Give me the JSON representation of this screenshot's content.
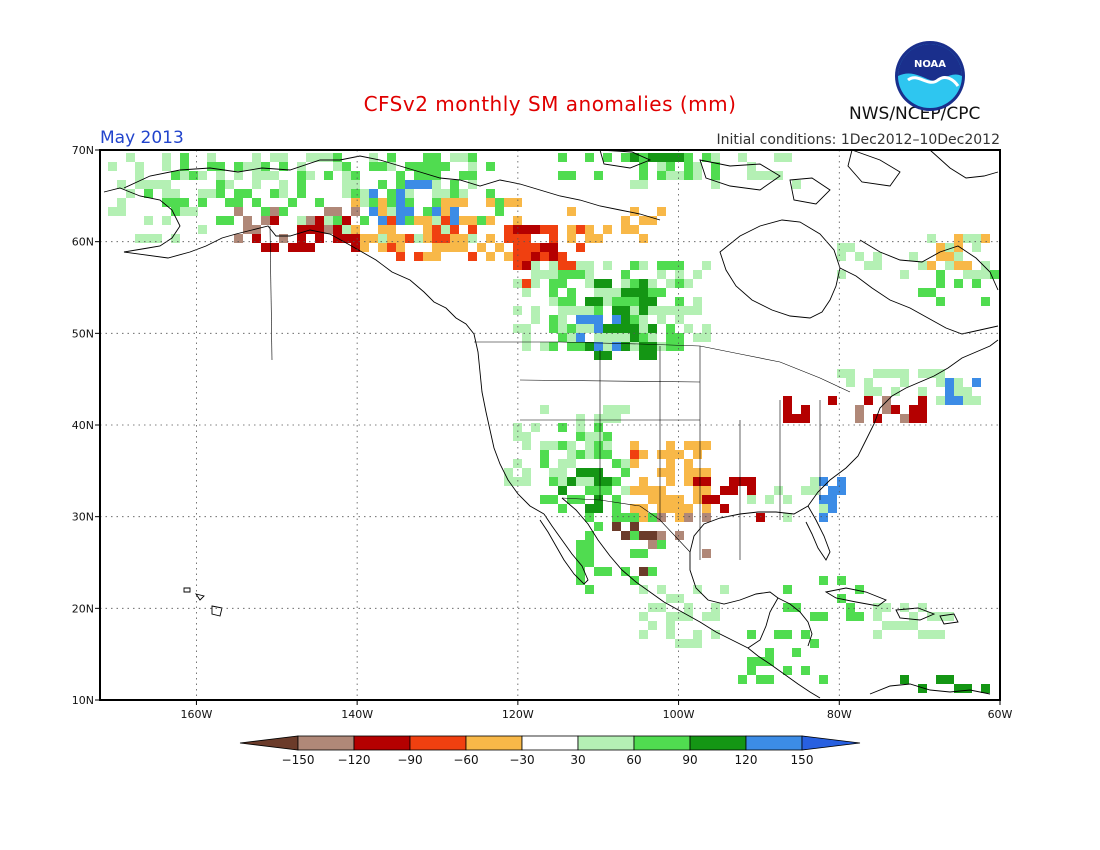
{
  "title": "CFSv2 monthly SM anomalies (mm)",
  "valid_month": "May 2013",
  "initial_conditions": "Initial conditions: 1Dec2012–10Dec2012",
  "agency": "NWS/NCEP/CPC",
  "logo": {
    "text": "NOAA",
    "icon": "noaa-logo-icon"
  },
  "map": {
    "lon_range": [
      -172,
      -60
    ],
    "lat_range": [
      10,
      70
    ],
    "lon_ticks": [
      -160,
      -140,
      -120,
      -100,
      -80,
      -60
    ],
    "lat_ticks": [
      10,
      20,
      30,
      40,
      50,
      60,
      70
    ],
    "lon_labels": [
      "160W",
      "140W",
      "120W",
      "100W",
      "80W",
      "60W"
    ],
    "lat_labels": [
      "10N",
      "20N",
      "30N",
      "40N",
      "50N",
      "60N",
      "70N"
    ],
    "grid": "dotted"
  },
  "colorbar": {
    "labels": [
      "−150",
      "−120",
      "−90",
      "−60",
      "−30",
      "30",
      "60",
      "90",
      "120",
      "150"
    ],
    "colors": [
      "#6b3b2a",
      "#b08878",
      "#b40000",
      "#f04010",
      "#f8b848",
      "#ffffff",
      "#b4f0b4",
      "#50dc50",
      "#149614",
      "#3c8ce6",
      "#2860e0"
    ]
  },
  "anomaly_colors": {
    "m150": "#6b3b2a",
    "m120": "#b08878",
    "m90": "#b40000",
    "m60": "#f04010",
    "m30": "#f8b848",
    "p30": "#b4f0b4",
    "p60": "#50dc50",
    "p90": "#149614",
    "p120": "#3c8ce6"
  },
  "anomaly_regions": [
    {
      "cls": "p30",
      "lon": [
        -170,
        -125
      ],
      "lat": [
        60,
        70
      ],
      "density": 0.32
    },
    {
      "cls": "p60",
      "lon": [
        -166,
        -128
      ],
      "lat": [
        62,
        70
      ],
      "density": 0.22
    },
    {
      "cls": "m120",
      "lon": [
        -155,
        -140
      ],
      "lat": [
        60,
        63
      ],
      "density": 0.25
    },
    {
      "cls": "m90",
      "lon": [
        -152,
        -140
      ],
      "lat": [
        59,
        62
      ],
      "density": 0.3
    },
    {
      "cls": "m30",
      "lon": [
        -140,
        -120
      ],
      "lat": [
        58,
        64
      ],
      "density": 0.4
    },
    {
      "cls": "m60",
      "lon": [
        -136,
        -126
      ],
      "lat": [
        58,
        63
      ],
      "density": 0.25
    },
    {
      "cls": "p60",
      "lon": [
        -140,
        -122
      ],
      "lat": [
        62,
        69
      ],
      "density": 0.28
    },
    {
      "cls": "p120",
      "lon": [
        -138,
        -128
      ],
      "lat": [
        62,
        66
      ],
      "density": 0.15
    },
    {
      "cls": "m90",
      "lon": [
        -120,
        -113
      ],
      "lat": [
        56,
        61
      ],
      "density": 0.6
    },
    {
      "cls": "m60",
      "lon": [
        -121,
        -112
      ],
      "lat": [
        55,
        61
      ],
      "density": 0.35
    },
    {
      "cls": "m30",
      "lon": [
        -113,
        -102
      ],
      "lat": [
        60,
        63
      ],
      "density": 0.35
    },
    {
      "cls": "p60",
      "lon": [
        -116,
        -100
      ],
      "lat": [
        49,
        57
      ],
      "density": 0.55
    },
    {
      "cls": "p90",
      "lon": [
        -111,
        -103
      ],
      "lat": [
        48,
        55
      ],
      "density": 0.55
    },
    {
      "cls": "p30",
      "lon": [
        -120,
        -96
      ],
      "lat": [
        49,
        57
      ],
      "density": 0.3
    },
    {
      "cls": "p120",
      "lon": [
        -112,
        -107
      ],
      "lat": [
        49,
        52
      ],
      "density": 0.3
    },
    {
      "cls": "p30",
      "lon": [
        -105,
        -85
      ],
      "lat": [
        66,
        70
      ],
      "density": 0.35
    },
    {
      "cls": "p60",
      "lon": [
        -115,
        -95
      ],
      "lat": [
        67,
        70
      ],
      "density": 0.35
    },
    {
      "cls": "p90",
      "lon": [
        -105,
        -100
      ],
      "lat": [
        68,
        70
      ],
      "density": 0.4
    },
    {
      "cls": "p30",
      "lon": [
        -80,
        -60
      ],
      "lat": [
        56,
        60
      ],
      "density": 0.25
    },
    {
      "cls": "m30",
      "lon": [
        -69,
        -62
      ],
      "lat": [
        57,
        60
      ],
      "density": 0.4
    },
    {
      "cls": "p30",
      "lon": [
        -121,
        -107
      ],
      "lat": [
        33,
        42
      ],
      "density": 0.28
    },
    {
      "cls": "p60",
      "lon": [
        -117,
        -106
      ],
      "lat": [
        31,
        40
      ],
      "density": 0.3
    },
    {
      "cls": "p90",
      "lon": [
        -115,
        -108
      ],
      "lat": [
        31,
        36
      ],
      "density": 0.2
    },
    {
      "cls": "m30",
      "lon": [
        -105,
        -96
      ],
      "lat": [
        30,
        38
      ],
      "density": 0.55
    },
    {
      "cls": "m60",
      "lon": [
        -106,
        -101
      ],
      "lat": [
        33,
        37
      ],
      "density": 0.2
    },
    {
      "cls": "m150",
      "lon": [
        -108,
        -103
      ],
      "lat": [
        24,
        29
      ],
      "density": 0.3
    },
    {
      "cls": "p60",
      "lon": [
        -112,
        -102
      ],
      "lat": [
        22,
        30
      ],
      "density": 0.35
    },
    {
      "cls": "m90",
      "lon": [
        -98,
        -90
      ],
      "lat": [
        30,
        34
      ],
      "density": 0.3
    },
    {
      "cls": "m120",
      "lon": [
        -104,
        -96
      ],
      "lat": [
        26,
        30
      ],
      "density": 0.25
    },
    {
      "cls": "p30",
      "lon": [
        -104,
        -94
      ],
      "lat": [
        16,
        22
      ],
      "density": 0.35
    },
    {
      "cls": "p60",
      "lon": [
        -92,
        -82
      ],
      "lat": [
        12,
        17
      ],
      "density": 0.3
    },
    {
      "cls": "p60",
      "lon": [
        -86,
        -77
      ],
      "lat": [
        19,
        23
      ],
      "density": 0.35
    },
    {
      "cls": "p30",
      "lon": [
        -75,
        -66
      ],
      "lat": [
        17,
        20
      ],
      "density": 0.4
    },
    {
      "cls": "p90",
      "lon": [
        -72,
        -62
      ],
      "lat": [
        10,
        12
      ],
      "density": 0.35
    },
    {
      "cls": "p30",
      "lon": [
        -92,
        -82
      ],
      "lat": [
        30,
        34
      ],
      "density": 0.3
    },
    {
      "cls": "p120",
      "lon": [
        -82,
        -80
      ],
      "lat": [
        30,
        34
      ],
      "density": 0.5
    },
    {
      "cls": "m90",
      "lon": [
        -86,
        -70
      ],
      "lat": [
        41,
        43
      ],
      "density": 0.35
    },
    {
      "cls": "m120",
      "lon": [
        -78,
        -72
      ],
      "lat": [
        41,
        43
      ],
      "density": 0.3
    },
    {
      "cls": "p30",
      "lon": [
        -80,
        -62
      ],
      "lat": [
        43,
        46
      ],
      "density": 0.25
    },
    {
      "cls": "p120",
      "lon": [
        -66,
        -63
      ],
      "lat": [
        43,
        45
      ],
      "density": 0.5
    },
    {
      "cls": "p60",
      "lon": [
        -70,
        -60
      ],
      "lat": [
        53,
        56
      ],
      "density": 0.25
    }
  ]
}
